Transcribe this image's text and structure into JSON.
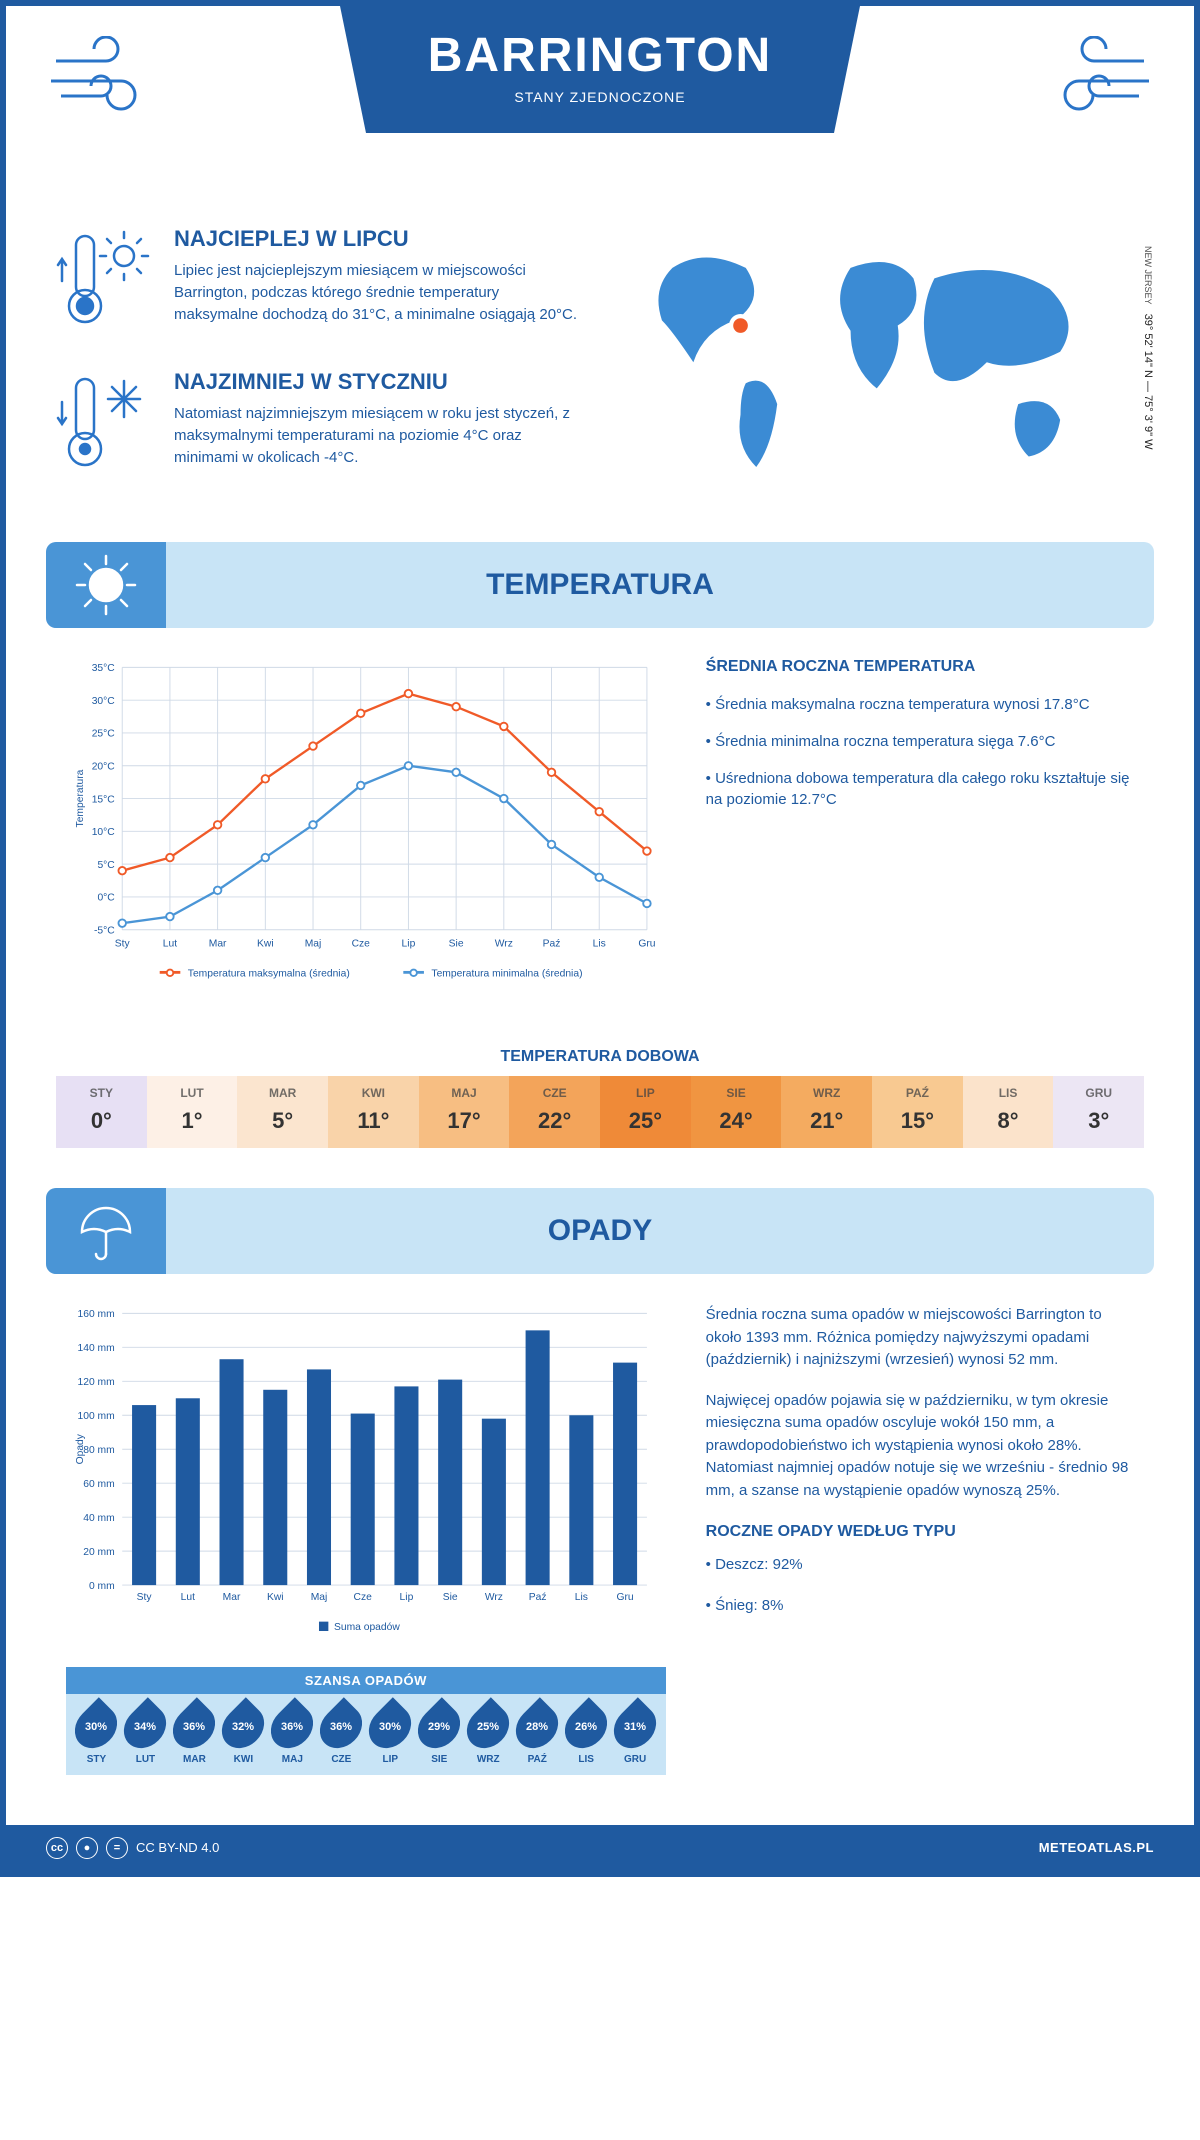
{
  "header": {
    "city": "BARRINGTON",
    "country": "STANY ZJEDNOCZONE",
    "coordinates": "39° 52' 14\" N — 75° 3' 9\" W",
    "state": "NEW JERSEY"
  },
  "intro": {
    "hot": {
      "title": "NAJCIEPLEJ W LIPCU",
      "body": "Lipiec jest najcieplejszym miesiącem w miejscowości Barrington, podczas którego średnie temperatury maksymalne dochodzą do 31°C, a minimalne osiągają 20°C."
    },
    "cold": {
      "title": "NAJZIMNIEJ W STYCZNIU",
      "body": "Natomiast najzimniejszym miesiącem w roku jest styczeń, z maksymalnymi temperaturami na poziomie 4°C oraz minimami w okolicach -4°C."
    }
  },
  "months": [
    "Sty",
    "Lut",
    "Mar",
    "Kwi",
    "Maj",
    "Cze",
    "Lip",
    "Sie",
    "Wrz",
    "Paź",
    "Lis",
    "Gru"
  ],
  "months_upper": [
    "STY",
    "LUT",
    "MAR",
    "KWI",
    "MAJ",
    "CZE",
    "LIP",
    "SIE",
    "WRZ",
    "PAŹ",
    "LIS",
    "GRU"
  ],
  "temperature": {
    "section_title": "TEMPERATURA",
    "chart": {
      "type": "line",
      "ylabel": "Temperatura",
      "ylim": [
        -5,
        35
      ],
      "ytick_step": 5,
      "ytick_labels": [
        "-5°C",
        "0°C",
        "5°C",
        "10°C",
        "15°C",
        "20°C",
        "25°C",
        "30°C",
        "35°C"
      ],
      "max_series": {
        "label": "Temperatura maksymalna (średnia)",
        "color": "#f05a28",
        "values": [
          4,
          6,
          11,
          18,
          23,
          28,
          31,
          29,
          26,
          19,
          13,
          7
        ]
      },
      "min_series": {
        "label": "Temperatura minimalna (średnia)",
        "color": "#4a95d6",
        "values": [
          -4,
          -3,
          1,
          6,
          11,
          17,
          20,
          19,
          15,
          8,
          3,
          -1
        ]
      },
      "grid_color": "#cfd9e6",
      "background": "#ffffff",
      "label_fontsize": 12
    },
    "stats_title": "ŚREDNIA ROCZNA TEMPERATURA",
    "stat1": "• Średnia maksymalna roczna temperatura wynosi 17.8°C",
    "stat2": "• Średnia minimalna roczna temperatura sięga 7.6°C",
    "stat3": "• Uśredniona dobowa temperatura dla całego roku kształtuje się na poziomie 12.7°C",
    "daily_title": "TEMPERATURA DOBOWA",
    "daily_values": [
      "0°",
      "1°",
      "5°",
      "11°",
      "17°",
      "22°",
      "25°",
      "24°",
      "21°",
      "15°",
      "8°",
      "3°"
    ],
    "daily_colors": [
      "#e7e0f4",
      "#fdf0e6",
      "#fbe5cf",
      "#f9d3a9",
      "#f7be82",
      "#f3a45a",
      "#ef8a38",
      "#f09541",
      "#f4ab60",
      "#f8c991",
      "#fbe3cb",
      "#ece6f4"
    ]
  },
  "precip": {
    "section_title": "OPADY",
    "chart": {
      "type": "bar",
      "ylabel": "Opady",
      "ylim": [
        0,
        160
      ],
      "ytick_step": 20,
      "ytick_labels": [
        "0 mm",
        "20 mm",
        "40 mm",
        "60 mm",
        "80 mm",
        "100 mm",
        "120 mm",
        "140 mm",
        "160 mm"
      ],
      "values": [
        106,
        110,
        133,
        115,
        127,
        101,
        117,
        121,
        98,
        150,
        100,
        131
      ],
      "bar_color": "#1f5aa0",
      "grid_color": "#cfd9e6",
      "background": "#ffffff",
      "legend": "Suma opadów"
    },
    "body1": "Średnia roczna suma opadów w miejscowości Barrington to około 1393 mm. Różnica pomiędzy najwyższymi opadami (październik) i najniższymi (wrzesień) wynosi 52 mm.",
    "body2": "Najwięcej opadów pojawia się w październiku, w tym okresie miesięczna suma opadów oscyluje wokół 150 mm, a prawdopodobieństwo ich wystąpienia wynosi około 28%. Natomiast najmniej opadów notuje się we wrześniu - średnio 98 mm, a szanse na wystąpienie opadów wynoszą 25%.",
    "chance_title": "SZANSA OPADÓW",
    "chance_values": [
      "30%",
      "34%",
      "36%",
      "32%",
      "36%",
      "36%",
      "30%",
      "29%",
      "25%",
      "28%",
      "26%",
      "31%"
    ],
    "by_type_title": "ROCZNE OPADY WEDŁUG TYPU",
    "by_type_1": "• Deszcz: 92%",
    "by_type_2": "• Śnieg: 8%"
  },
  "footer": {
    "license": "CC BY-ND 4.0",
    "site": "METEOATLAS.PL"
  }
}
